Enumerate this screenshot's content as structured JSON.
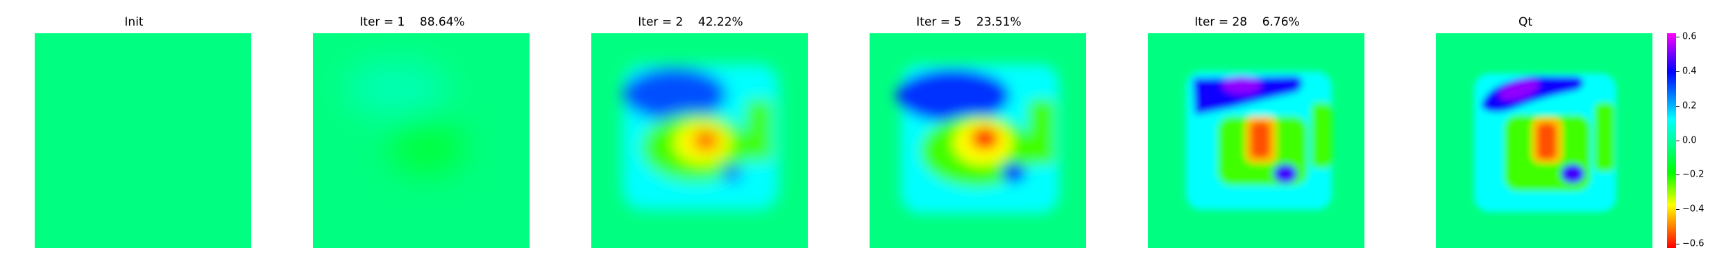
{
  "chart_data": {
    "type": "heatmap",
    "panels": [
      {
        "title": "Init"
      },
      {
        "title": "Iter = 1    88.64%"
      },
      {
        "title": "Iter = 2    42.22%"
      },
      {
        "title": "Iter = 5    23.51%"
      },
      {
        "title": "Iter = 28    6.76%"
      },
      {
        "title": "Qt"
      }
    ],
    "colorbar": {
      "vmin": -0.6,
      "vmax": 0.6,
      "ticks": [
        "0.6",
        "0.4",
        "0.2",
        "0.0",
        "−0.2",
        "−0.4",
        "−0.6"
      ]
    },
    "colors": {
      "background": "#00ff80",
      "positive_blob": "#0000ff",
      "negative_blob": "#ff0000",
      "halo": "#00ffff",
      "mid": "#00ff00"
    }
  }
}
